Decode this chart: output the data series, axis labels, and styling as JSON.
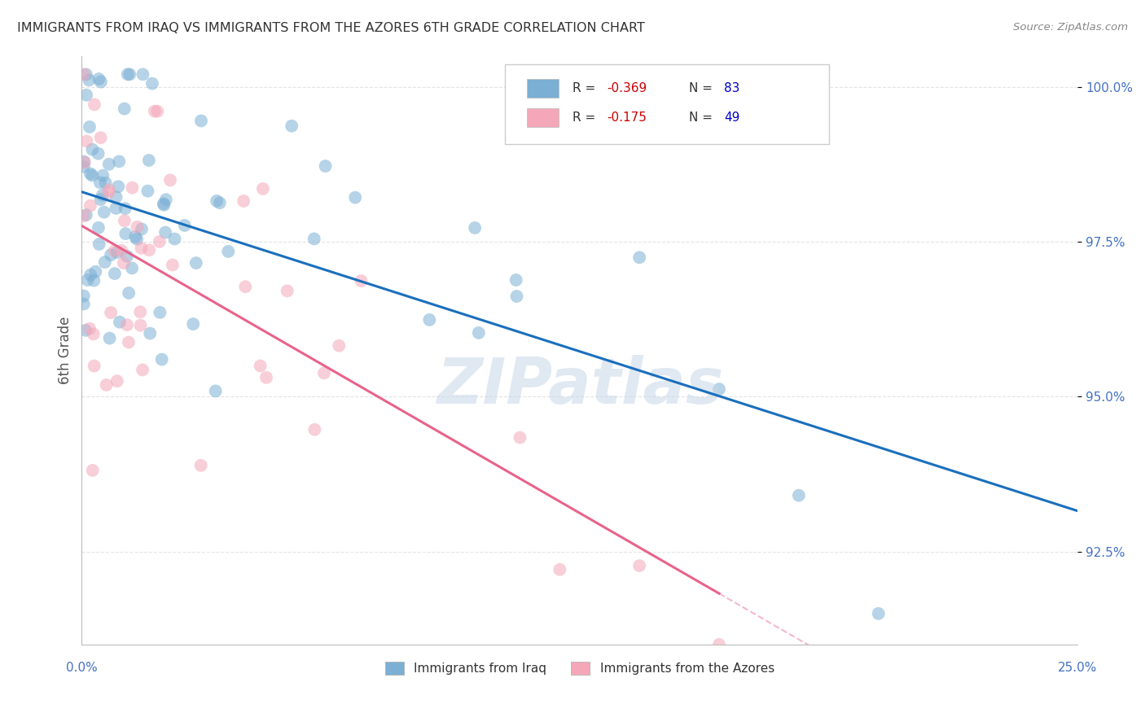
{
  "title": "IMMIGRANTS FROM IRAQ VS IMMIGRANTS FROM THE AZORES 6TH GRADE CORRELATION CHART",
  "source": "Source: ZipAtlas.com",
  "ylabel": "6th Grade",
  "xlim": [
    0.0,
    25.0
  ],
  "ylim": [
    91.0,
    100.5
  ],
  "y_ticks": [
    92.5,
    95.0,
    97.5,
    100.0
  ],
  "legend_iraq_label": "Immigrants from Iraq",
  "legend_azores_label": "Immigrants from the Azores",
  "legend_iraq_R": "-0.369",
  "legend_iraq_N": "83",
  "legend_azores_R": "-0.175",
  "legend_azores_N": "49",
  "iraq_color": "#7bafd4",
  "azores_color": "#f4a7b9",
  "iraq_line_color": "#1a6fbd",
  "azores_line_color": "#e8638a",
  "watermark": "ZIPatlas",
  "watermark_color": "#c8d8e8",
  "background_color": "#ffffff",
  "grid_color": "#dddddd",
  "title_color": "#333333",
  "axis_label_color": "#4472c4",
  "legend_R_color": "#cc0000",
  "legend_N_color": "#0000cc"
}
